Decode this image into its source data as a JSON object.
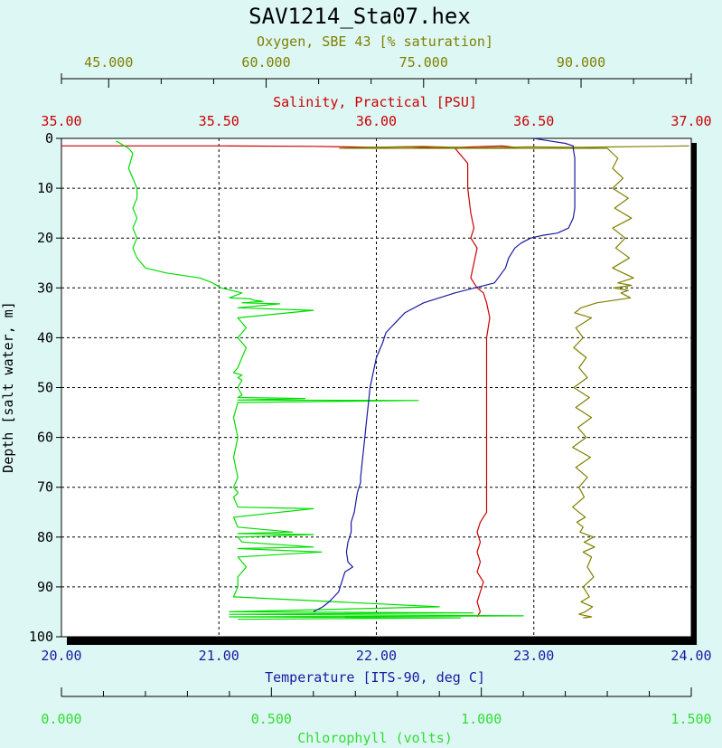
{
  "chart_data": {
    "type": "line",
    "title": "SAV1214_Sta07.hex",
    "ylabel": "Depth [salt water, m]",
    "y_axis": {
      "range": [
        0,
        100
      ],
      "ticks": [
        0,
        10,
        20,
        30,
        40,
        50,
        60,
        70,
        80,
        90,
        100
      ],
      "tick_labels": [
        "0",
        "10",
        "20",
        "30",
        "40",
        "50",
        "60",
        "70",
        "80",
        "90",
        "100"
      ],
      "inverted": true
    },
    "grid": true,
    "colors": {
      "oxygen": "#808000",
      "salinity": "#cc0000",
      "temperature": "#1a1aa0",
      "chlorophyll": "#00dd00",
      "plot_background": "#ffffff",
      "page_background": "#ddf7f5"
    },
    "axes": [
      {
        "id": "oxygen",
        "label": "Oxygen, SBE 43 [% saturation]",
        "position": "top",
        "range": [
          40.5,
          100.5
        ],
        "tick_values": [
          45,
          60,
          75,
          90
        ],
        "tick_labels": [
          "45.000",
          "60.000",
          "75.000",
          "90.000"
        ],
        "minor_step": 5
      },
      {
        "id": "salinity",
        "label": "Salinity, Practical [PSU]",
        "position": "top",
        "range": [
          35.0,
          37.0
        ],
        "tick_values": [
          35,
          35.5,
          36,
          36.5,
          37
        ],
        "tick_labels": [
          "35.00",
          "35.50",
          "36.00",
          "36.50",
          "37.00"
        ]
      },
      {
        "id": "temperature",
        "label": "Temperature [ITS-90, deg C]",
        "position": "bottom",
        "range": [
          20.0,
          24.0
        ],
        "tick_values": [
          20,
          21,
          22,
          23,
          24
        ],
        "tick_labels": [
          "20.00",
          "21.00",
          "22.00",
          "23.00",
          "24.00"
        ]
      },
      {
        "id": "chlorophyll",
        "label": "Chlorophyll (volts)",
        "position": "bottom",
        "range": [
          0.0,
          1.5
        ],
        "tick_values": [
          0,
          0.5,
          1.0,
          1.5
        ],
        "tick_labels": [
          "0.000",
          "0.500",
          "1.000",
          "1.500"
        ],
        "minor_step": 0.1
      }
    ],
    "series": [
      {
        "id": "temperature",
        "x": [
          23.0,
          23.1,
          23.2,
          23.25,
          23.25,
          23.26,
          23.26,
          23.26,
          23.26,
          23.26,
          23.26,
          23.25,
          23.22,
          23.15,
          23.05,
          22.98,
          22.92,
          22.88,
          22.84,
          22.82,
          22.75,
          22.5,
          22.3,
          22.18,
          22.12,
          22.06,
          22.04,
          22.0,
          21.98,
          21.96,
          21.95,
          21.94,
          21.93,
          21.92,
          21.91,
          21.9,
          21.9,
          21.88,
          21.87,
          21.86,
          21.84,
          21.84,
          21.82,
          21.81,
          21.82,
          21.85,
          21.8,
          21.78,
          21.76,
          21.73,
          21.7,
          21.66,
          21.6
        ],
        "y": [
          0,
          0.5,
          1,
          1.5,
          2,
          4,
          6,
          8,
          10,
          12,
          14,
          16,
          18,
          19,
          19.5,
          20,
          21,
          22,
          24,
          26,
          29,
          31,
          33,
          35,
          37,
          39,
          41,
          44,
          47,
          50,
          53,
          56,
          59,
          62,
          65,
          68,
          69,
          71,
          73,
          75,
          77,
          79,
          81,
          83,
          85,
          86,
          87,
          89,
          91,
          92,
          93,
          94,
          95
        ]
      },
      {
        "id": "salinity",
        "x": [
          35.0,
          35.5,
          35.8,
          36.0,
          36.1,
          36.2,
          36.4,
          36.44,
          36.25,
          36.29,
          36.29,
          36.3,
          36.31,
          36.3,
          36.32,
          36.31,
          36.3,
          36.32,
          36.34,
          36.35,
          36.36,
          36.35,
          36.35,
          36.35,
          36.35,
          36.35,
          36.35,
          36.35,
          36.35,
          36.35,
          36.35,
          36.35,
          36.33,
          36.32,
          36.33,
          36.32,
          36.33,
          36.32,
          36.34,
          36.33,
          36.32,
          36.33,
          36.32
        ],
        "y": [
          1.5,
          1.5,
          1.6,
          1.8,
          1.7,
          1.9,
          1.5,
          1.8,
          2,
          5,
          10,
          15,
          18,
          20,
          22,
          25,
          28,
          30,
          31,
          33,
          36,
          40,
          45,
          50,
          55,
          60,
          65,
          69,
          70,
          72,
          74,
          75,
          77,
          79,
          81,
          83,
          85,
          87,
          89,
          91,
          93,
          95,
          96
        ]
      },
      {
        "id": "oxygen",
        "x": [
          100.3,
          97.0,
          90.0,
          85.0,
          80.0,
          75.0,
          70.0,
          67.0,
          92.5,
          93.5,
          93.0,
          94.0,
          93.0,
          94.5,
          93.2,
          94.8,
          93.0,
          94.2,
          93.3,
          94.6,
          93.0,
          95.0,
          93.5,
          94.8,
          93.1,
          94.5,
          93.8,
          94.7,
          91.5,
          90.0,
          89.4,
          91.0,
          89.5,
          90.2,
          89.3,
          90.5,
          89.8,
          90.6,
          89.3,
          90.8,
          89.5,
          91.0,
          89.7,
          90.5,
          89.2,
          90.9,
          89.5,
          90.6,
          89.8,
          90.3,
          89.2,
          90.4,
          89.6,
          90.2,
          89.9,
          91.2,
          90.3,
          91.3,
          90.2,
          91.0,
          90.6,
          91.2,
          90.2,
          90.8,
          90.0,
          91.1,
          90.4,
          89.8,
          91.0,
          90.2
        ],
        "y": [
          1.5,
          1.6,
          1.8,
          1.7,
          1.9,
          1.6,
          1.8,
          2,
          2,
          4,
          6,
          8,
          10,
          12,
          14,
          16,
          18,
          20,
          22,
          24,
          26,
          28,
          29,
          29.5,
          30,
          30.5,
          31,
          32,
          33,
          34,
          35,
          36,
          38,
          40,
          42,
          44,
          46,
          48,
          50,
          52,
          54,
          56,
          58,
          60,
          62,
          64,
          66,
          68,
          70,
          72,
          74,
          76,
          77,
          78,
          79,
          80,
          81,
          82,
          83,
          84,
          86,
          88,
          90,
          92,
          93,
          94,
          95,
          95.5,
          96,
          96.2
        ]
      },
      {
        "id": "chlorophyll",
        "x": [
          0.13,
          0.16,
          0.17,
          0.16,
          0.17,
          0.18,
          0.18,
          0.17,
          0.18,
          0.17,
          0.18,
          0.17,
          0.18,
          0.2,
          0.25,
          0.33,
          0.36,
          0.38,
          0.43,
          0.4,
          0.45,
          0.46,
          0.48,
          0.43,
          0.52,
          0.42,
          0.6,
          0.42,
          0.44,
          0.42,
          0.44,
          0.43,
          0.42,
          0.41,
          0.43,
          0.42,
          0.43,
          0.42,
          0.43,
          0.42,
          0.58,
          0.42,
          0.85,
          0.42,
          0.41,
          0.42,
          0.41,
          0.42,
          0.41,
          0.42,
          0.42,
          0.41,
          0.42,
          0.6,
          0.41,
          0.42,
          0.55,
          0.42,
          0.6,
          0.42,
          0.43,
          0.6,
          0.42,
          0.62,
          0.42,
          0.44,
          0.42,
          0.42,
          0.41,
          0.9,
          0.4,
          0.98,
          0.4,
          1.1,
          0.4,
          0.95,
          0.42
        ],
        "y": [
          0.5,
          2,
          3,
          6,
          8,
          10,
          12,
          14,
          16,
          18,
          20,
          22,
          24,
          26,
          27,
          28,
          29,
          30,
          31,
          32,
          32.2,
          32.5,
          32.7,
          33,
          33.2,
          34,
          34.5,
          36,
          38,
          40,
          42,
          44,
          46,
          47,
          47.5,
          48,
          48.5,
          50,
          51.5,
          52,
          52.2,
          52.5,
          52.6,
          53,
          56,
          60,
          64,
          68,
          70,
          71,
          71.2,
          72,
          74,
          74.3,
          76,
          78,
          79,
          79.3,
          79.5,
          80,
          81,
          82,
          82.3,
          83,
          84,
          86,
          88,
          90,
          92,
          94,
          95,
          95.2,
          95.5,
          95.8,
          96,
          96.2,
          96.5
        ]
      }
    ]
  }
}
